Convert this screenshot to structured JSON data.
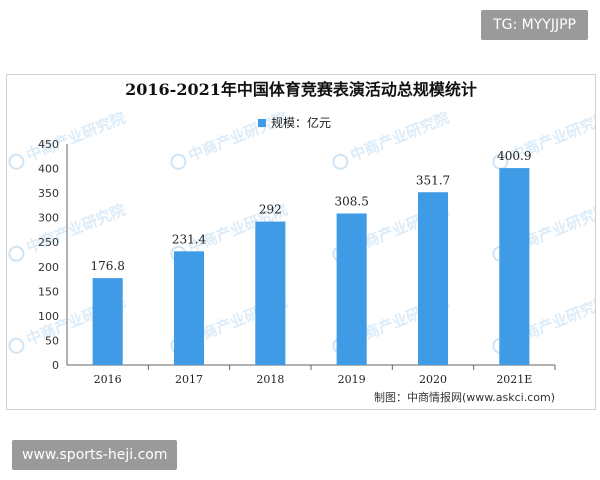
{
  "watermark_tag": "TG: MYYJJPP",
  "footer_tag": "www.sports-heji.com",
  "background_watermark": "中商产业研究院",
  "chart_data": {
    "type": "bar",
    "title": "2016-2021年中国体育竞赛表演活动总规模统计",
    "legend": {
      "position": "top-center",
      "entries": [
        "规模：亿元"
      ]
    },
    "categories": [
      "2016",
      "2017",
      "2018",
      "2019",
      "2020",
      "2021E"
    ],
    "series": [
      {
        "name": "规模：亿元",
        "values": [
          176.8,
          231.4,
          292,
          308.5,
          351.7,
          400.9
        ],
        "labels": [
          "176.8",
          "231.4",
          "292",
          "308.5",
          "351.7",
          "400.9"
        ],
        "color": "#3f9be6"
      }
    ],
    "ylim": [
      0,
      450
    ],
    "yticks": [
      0,
      50,
      100,
      150,
      200,
      250,
      300,
      350,
      400,
      450
    ],
    "xlabel": "",
    "ylabel": "",
    "grid": false,
    "source": "制图：中商情报网(www.askci.com)"
  }
}
